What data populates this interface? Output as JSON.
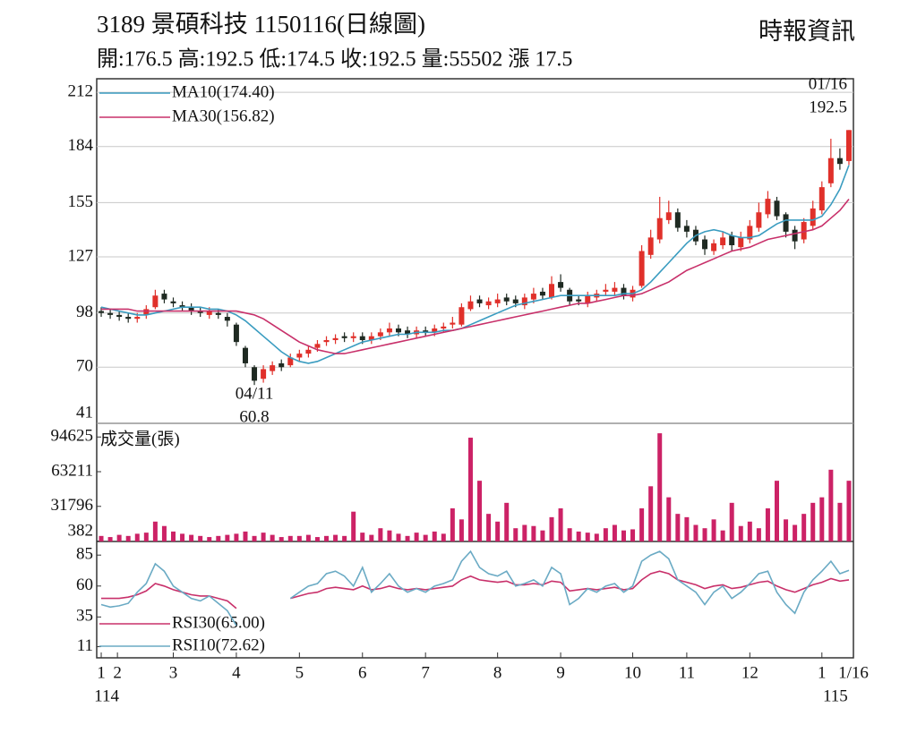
{
  "header": {
    "title": "3189  景碩科技 1150116(日線圖)",
    "source": "時報資訊",
    "info": "開:176.5 高:192.5 低:174.5 收:192.5 量:55502 漲 17.5"
  },
  "chart_data": [
    {
      "type": "candlestick",
      "up_color": "#e0302a",
      "down_color": "#1f2a22",
      "grid": true,
      "ylim": [
        41,
        219
      ],
      "yticks": [
        212,
        184,
        155,
        127,
        98,
        70,
        41
      ],
      "open": [
        99,
        98,
        97,
        96,
        95,
        97,
        101,
        108,
        104,
        102,
        101,
        99,
        97,
        98,
        96,
        92,
        80,
        70,
        64,
        68,
        72,
        71,
        75,
        77,
        80,
        83,
        84,
        86,
        85,
        86,
        84,
        86,
        88,
        90,
        89,
        87,
        89,
        88,
        90,
        92,
        92,
        100,
        105,
        102,
        103,
        106,
        105,
        102,
        105,
        109,
        106,
        114,
        110,
        105,
        103,
        106,
        109,
        109,
        111,
        106,
        112,
        128,
        136,
        146,
        150,
        143,
        141,
        136,
        130,
        133,
        138,
        132,
        136,
        142,
        149,
        156,
        149,
        141,
        136,
        143,
        151,
        165,
        178,
        176.5
      ],
      "high": [
        101,
        100,
        99,
        98,
        98,
        102,
        110,
        110,
        106,
        104,
        103,
        101,
        101,
        100,
        98,
        93,
        81,
        71,
        71,
        73,
        74,
        77,
        79,
        81,
        84,
        86,
        87,
        88,
        88,
        88,
        88,
        90,
        93,
        92,
        91,
        91,
        91,
        92,
        93,
        96,
        103,
        107,
        107,
        106,
        108,
        108,
        107,
        108,
        111,
        111,
        117,
        118,
        111,
        107,
        109,
        110,
        113,
        114,
        113,
        112,
        133,
        141,
        158,
        156,
        152,
        146,
        143,
        138,
        136,
        140,
        140,
        140,
        146,
        155,
        161,
        158,
        150,
        143,
        147,
        156,
        166,
        188,
        183,
        192.5
      ],
      "low": [
        96,
        95,
        94,
        93,
        93,
        95,
        100,
        103,
        101,
        99,
        97,
        96,
        95,
        95,
        91,
        81,
        70,
        60.8,
        62,
        66,
        68,
        70,
        73,
        75,
        78,
        81,
        82,
        83,
        83,
        82,
        82,
        84,
        86,
        86,
        85,
        85,
        86,
        86,
        88,
        90,
        91,
        99,
        101,
        100,
        101,
        102,
        101,
        100,
        103,
        105,
        105,
        109,
        102,
        102,
        101,
        104,
        107,
        107,
        105,
        104,
        111,
        126,
        134,
        144,
        140,
        137,
        133,
        128,
        128,
        131,
        130,
        130,
        134,
        140,
        147,
        146,
        137,
        131,
        134,
        141,
        149,
        163,
        172,
        174.5
      ],
      "close": [
        98,
        97,
        96,
        95,
        96,
        100,
        107,
        105,
        103,
        101,
        99,
        98,
        99,
        97,
        94,
        83,
        72,
        63,
        69,
        71,
        70,
        75,
        77,
        79,
        82,
        84,
        85,
        85,
        86,
        84,
        86,
        88,
        90,
        88,
        87,
        89,
        88,
        90,
        91,
        93,
        101,
        104,
        103,
        104,
        105,
        104,
        103,
        106,
        108,
        107,
        113,
        111,
        104,
        104,
        107,
        108,
        110,
        111,
        107,
        110,
        130,
        137,
        147,
        150,
        142,
        140,
        135,
        131,
        134,
        137,
        133,
        137,
        143,
        150,
        157,
        148,
        140,
        135,
        145,
        152,
        163,
        178,
        175,
        192.5
      ],
      "series": [
        {
          "name": "MA10(174.40)",
          "color": "#3a9cc0",
          "values": [
            101,
            100,
            99,
            98,
            97,
            97,
            98,
            99,
            100,
            101,
            101,
            101,
            100,
            100,
            99,
            97,
            94,
            90,
            86,
            82,
            78,
            75,
            73,
            72,
            73,
            75,
            77,
            79,
            81,
            83,
            84,
            85,
            86,
            87,
            87,
            88,
            88,
            88,
            89,
            89,
            90,
            92,
            94,
            96,
            98,
            100,
            102,
            103,
            104,
            105,
            106,
            107,
            107,
            107,
            107,
            107,
            107,
            107,
            108,
            108,
            110,
            114,
            119,
            124,
            129,
            134,
            138,
            140,
            141,
            140,
            138,
            137,
            137,
            138,
            141,
            144,
            146,
            146,
            146,
            146,
            148,
            154,
            162,
            174.4
          ]
        },
        {
          "name": "MA30(156.82)",
          "color": "#c8306a",
          "values": [
            100,
            100,
            100,
            100,
            99,
            99,
            99,
            99,
            99,
            99,
            99,
            99,
            99,
            99,
            99,
            99,
            98,
            97,
            95,
            92,
            89,
            86,
            83,
            81,
            79,
            78,
            77,
            77,
            78,
            79,
            80,
            81,
            82,
            83,
            84,
            85,
            86,
            87,
            88,
            89,
            90,
            91,
            92,
            93,
            94,
            95,
            96,
            97,
            98,
            99,
            100,
            101,
            102,
            103,
            103,
            104,
            105,
            106,
            107,
            107,
            108,
            110,
            112,
            114,
            117,
            120,
            122,
            124,
            126,
            128,
            130,
            131,
            132,
            134,
            136,
            137,
            138,
            139,
            140,
            141,
            143,
            147,
            151,
            156.82
          ]
        }
      ],
      "low_label": [
        "04/11",
        "60.8"
      ],
      "high_label": [
        "01/16",
        "192.5"
      ]
    },
    {
      "type": "bar",
      "title": "成交量(張)",
      "color": "#cc2266",
      "ylim": [
        0,
        107000
      ],
      "yticks": [
        94625,
        63211,
        31796,
        382
      ],
      "values": [
        5000,
        4000,
        6000,
        5000,
        7000,
        8000,
        18000,
        14000,
        9000,
        7000,
        6000,
        5000,
        4000,
        5000,
        6000,
        7000,
        9000,
        5000,
        8000,
        6000,
        4000,
        5000,
        5000,
        6000,
        4000,
        5000,
        6000,
        5000,
        27000,
        8000,
        6000,
        12000,
        10000,
        7000,
        5000,
        8000,
        6000,
        9000,
        7000,
        30000,
        20000,
        94000,
        55000,
        25000,
        18000,
        35000,
        12000,
        15000,
        14000,
        10000,
        22000,
        30000,
        12000,
        9000,
        8000,
        7000,
        12000,
        15000,
        10000,
        11000,
        30000,
        50000,
        98000,
        40000,
        25000,
        22000,
        15000,
        12000,
        20000,
        10000,
        35000,
        14000,
        18000,
        12000,
        30000,
        55000,
        20000,
        15000,
        25000,
        35000,
        40000,
        65000,
        35000,
        55000
      ]
    },
    {
      "type": "line",
      "ylim": [
        2,
        96
      ],
      "yticks": [
        85,
        60,
        35,
        11
      ],
      "xlim": [
        -0.5,
        83.5
      ],
      "xticks": [
        {
          "value": 0,
          "label": "1"
        },
        {
          "value": 1.8,
          "label": "2"
        },
        {
          "value": 8,
          "label": "3"
        },
        {
          "value": 15,
          "label": "4"
        },
        {
          "value": 22,
          "label": "5"
        },
        {
          "value": 29,
          "label": "6"
        },
        {
          "value": 36,
          "label": "7"
        },
        {
          "value": 44,
          "label": "8"
        },
        {
          "value": 51,
          "label": "9"
        },
        {
          "value": 59,
          "label": "10"
        },
        {
          "value": 65,
          "label": "11"
        },
        {
          "value": 72,
          "label": "12"
        },
        {
          "value": 80,
          "label": "1"
        },
        {
          "value": 83.5,
          "label": "1/16"
        }
      ],
      "xsublabels": [
        {
          "value": 0.6,
          "label": "114"
        },
        {
          "value": 81.5,
          "label": "115"
        }
      ],
      "series": [
        {
          "name": "RSI30(65.00)",
          "color": "#c8306a",
          "values": [
            50,
            50,
            50,
            51,
            53,
            56,
            62,
            60,
            57,
            55,
            53,
            52,
            52,
            50,
            48,
            42,
            null,
            null,
            null,
            null,
            null,
            50,
            52,
            54,
            55,
            58,
            59,
            58,
            57,
            60,
            57,
            58,
            60,
            58,
            57,
            58,
            57,
            58,
            59,
            60,
            65,
            68,
            65,
            64,
            63,
            64,
            61,
            61,
            62,
            61,
            64,
            63,
            56,
            57,
            58,
            57,
            58,
            59,
            57,
            58,
            65,
            70,
            72,
            70,
            65,
            63,
            61,
            58,
            60,
            61,
            58,
            59,
            61,
            63,
            64,
            60,
            57,
            55,
            58,
            61,
            63,
            66,
            64,
            65
          ]
        },
        {
          "name": "RSI10(72.62)",
          "color": "#6aaac4",
          "values": [
            45,
            43,
            44,
            46,
            55,
            62,
            78,
            72,
            60,
            55,
            50,
            48,
            52,
            46,
            40,
            28,
            null,
            null,
            null,
            null,
            null,
            50,
            55,
            60,
            62,
            70,
            72,
            68,
            60,
            75,
            55,
            62,
            70,
            60,
            55,
            58,
            55,
            60,
            62,
            65,
            80,
            88,
            75,
            70,
            68,
            72,
            60,
            62,
            65,
            60,
            75,
            70,
            45,
            50,
            58,
            55,
            60,
            62,
            55,
            60,
            80,
            85,
            88,
            82,
            65,
            60,
            55,
            45,
            55,
            60,
            50,
            55,
            62,
            70,
            72,
            55,
            45,
            38,
            55,
            65,
            72,
            80,
            70,
            72.62
          ]
        }
      ]
    }
  ]
}
